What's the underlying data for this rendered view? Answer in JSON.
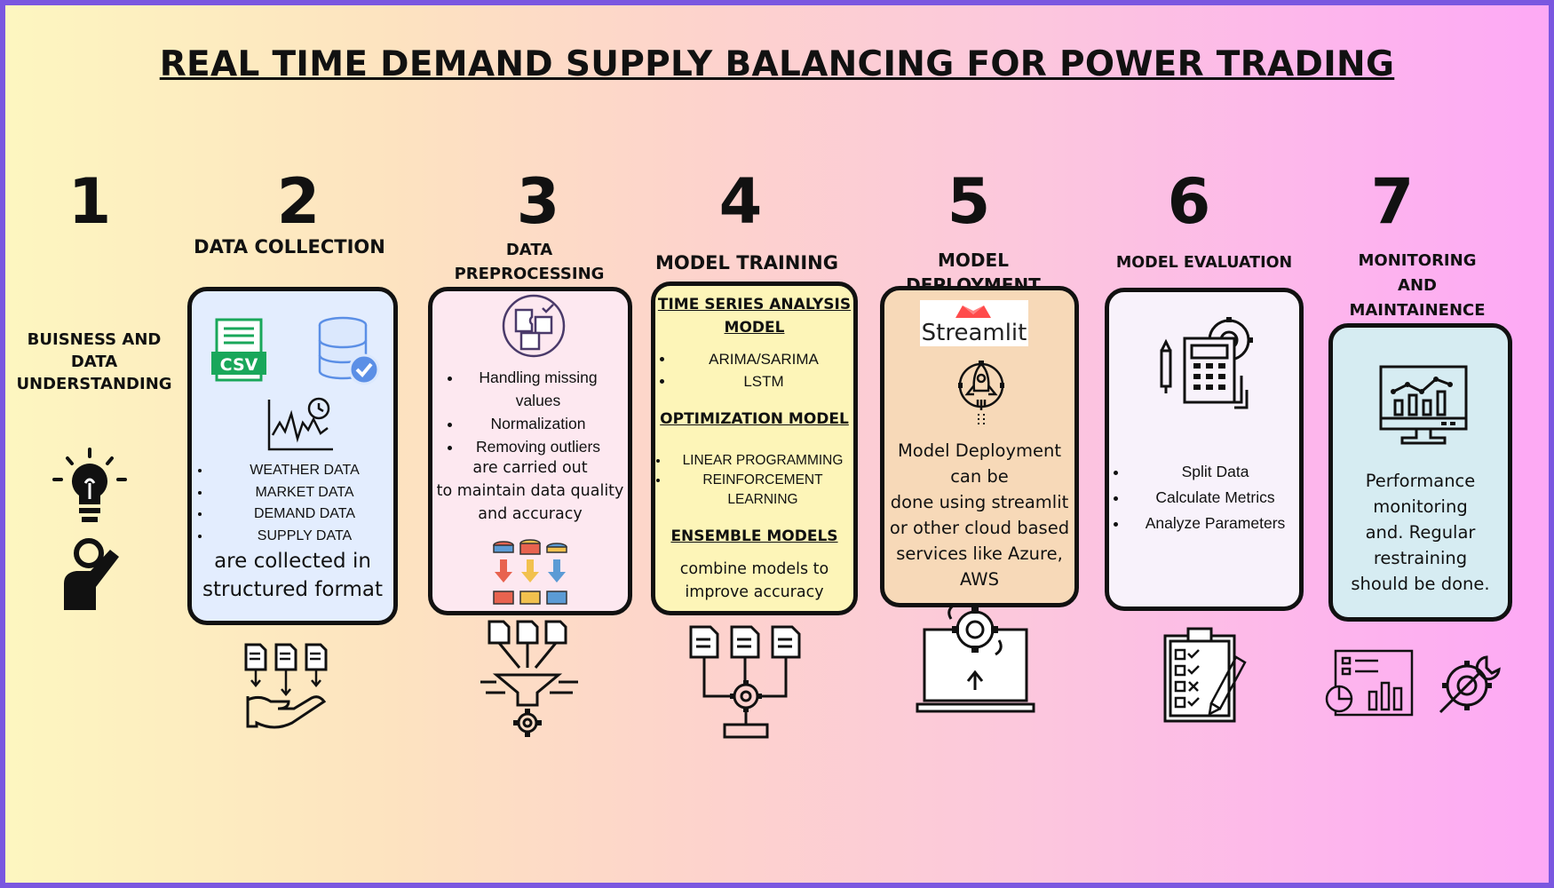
{
  "title": "REAL TIME DEMAND SUPPLY BALANCING FOR POWER TRADING",
  "colors": {
    "border": "#7a57e0",
    "card2": "#e3edfe",
    "card3": "#fde8f0",
    "card4": "#fdf5b8",
    "card5": "#f7d9b8",
    "card6": "#f8f2fb",
    "card7": "#d6ecf2"
  },
  "steps": [
    {
      "number": "1",
      "heading": "BUISNESS  AND\nDATA\nUNDERSTANDING",
      "icons": [
        "lightbulb-icon",
        "person-idea-icon"
      ]
    },
    {
      "number": "2",
      "heading": "DATA COLLECTION",
      "bullets": [
        "WEATHER DATA",
        "MARKET DATA",
        "DEMAND DATA",
        "SUPPLY DATA"
      ],
      "text": "are collected in\nstructured format",
      "csv_label": "CSV",
      "icons": [
        "csv-file-icon",
        "database-check-icon",
        "chart-clock-icon",
        "documents-hand-icon"
      ]
    },
    {
      "number": "3",
      "heading": "DATA\nPREPROCESSING",
      "bullets": [
        "Handling missing values",
        "Normalization",
        "Removing outliers"
      ],
      "text": "are carried out\nto maintain data quality\nand accuracy",
      "icons": [
        "puzzle-icon",
        "data-sort-icon",
        "funnel-gear-icon"
      ]
    },
    {
      "number": "4",
      "heading": "MODEL TRAINING",
      "sub1": "TIME SERIES ANALYSIS MODEL",
      "bullets1": [
        "ARIMA/SARIMA",
        "LSTM"
      ],
      "sub2": "OPTIMIZATION MODEL",
      "bullets2": [
        "LINEAR PROGRAMMING",
        "REINFORCEMENT LEARNING"
      ],
      "sub3": "ENSEMBLE MODELS",
      "text": "combine models to\nimprove accuracy",
      "icons": [
        "documents-gear-flow-icon"
      ]
    },
    {
      "number": "5",
      "heading": "MODEL DEPLOYMENT",
      "logo_text": "Streamlit",
      "text": "Model Deployment\ncan be\ndone using streamlit\nor other cloud based\nservices like Azure,\nAWS",
      "icons": [
        "streamlit-logo",
        "rocket-gear-icon",
        "laptop-gear-upload-icon"
      ]
    },
    {
      "number": "6",
      "heading": "MODEL EVALUATION",
      "bullets": [
        "Split Data",
        "Calculate Metrics",
        "Analyze Parameters"
      ],
      "icons": [
        "calculator-gear-icon",
        "checklist-clipboard-icon"
      ]
    },
    {
      "number": "7",
      "heading": "MONITORING\nAND\nMAINTAINENCE",
      "text": "Performance\nmonitoring\nand. Regular\nrestraining\nshould be done.",
      "icons": [
        "monitor-chart-icon",
        "dashboard-icon",
        "wrench-gear-icon"
      ]
    }
  ]
}
